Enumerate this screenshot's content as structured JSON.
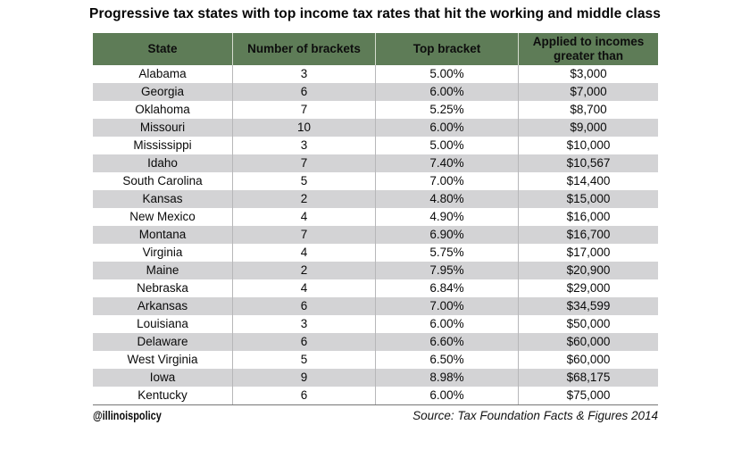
{
  "title": "Progressive tax states with top income tax rates that hit the working and middle class",
  "chart_data": {
    "type": "table",
    "title": "Progressive tax states with top income tax rates that hit the working and middle class",
    "columns": [
      "State",
      "Number of brackets",
      "Top bracket",
      "Applied to incomes greater than"
    ],
    "rows": [
      [
        "Alabama",
        "3",
        "5.00%",
        "$3,000"
      ],
      [
        "Georgia",
        "6",
        "6.00%",
        "$7,000"
      ],
      [
        "Oklahoma",
        "7",
        "5.25%",
        "$8,700"
      ],
      [
        "Missouri",
        "10",
        "6.00%",
        "$9,000"
      ],
      [
        "Mississippi",
        "3",
        "5.00%",
        "$10,000"
      ],
      [
        "Idaho",
        "7",
        "7.40%",
        "$10,567"
      ],
      [
        "South Carolina",
        "5",
        "7.00%",
        "$14,400"
      ],
      [
        "Kansas",
        "2",
        "4.80%",
        "$15,000"
      ],
      [
        "New Mexico",
        "4",
        "4.90%",
        "$16,000"
      ],
      [
        "Montana",
        "7",
        "6.90%",
        "$16,700"
      ],
      [
        "Virginia",
        "4",
        "5.75%",
        "$17,000"
      ],
      [
        "Maine",
        "2",
        "7.95%",
        "$20,900"
      ],
      [
        "Nebraska",
        "4",
        "6.84%",
        "$29,000"
      ],
      [
        "Arkansas",
        "6",
        "7.00%",
        "$34,599"
      ],
      [
        "Louisiana",
        "3",
        "6.00%",
        "$50,000"
      ],
      [
        "Delaware",
        "6",
        "6.60%",
        "$60,000"
      ],
      [
        "West Virginia",
        "5",
        "6.50%",
        "$60,000"
      ],
      [
        "Iowa",
        "9",
        "8.98%",
        "$68,175"
      ],
      [
        "Kentucky",
        "6",
        "6.00%",
        "$75,000"
      ]
    ],
    "layout": {
      "header_two_line_last_column": true,
      "alternating_rows": true,
      "first_row_background": "white"
    }
  },
  "footer": {
    "handle": "@illinoispolicy",
    "source": "Source: Tax Foundation Facts & Figures 2014"
  },
  "colors": {
    "header_bg": "#5e7c57",
    "row_alt_bg": "#d3d3d5",
    "header_text": "#0d0d0d",
    "body_text": "#0a0a0a",
    "table_bottom_rule": "#767676"
  }
}
